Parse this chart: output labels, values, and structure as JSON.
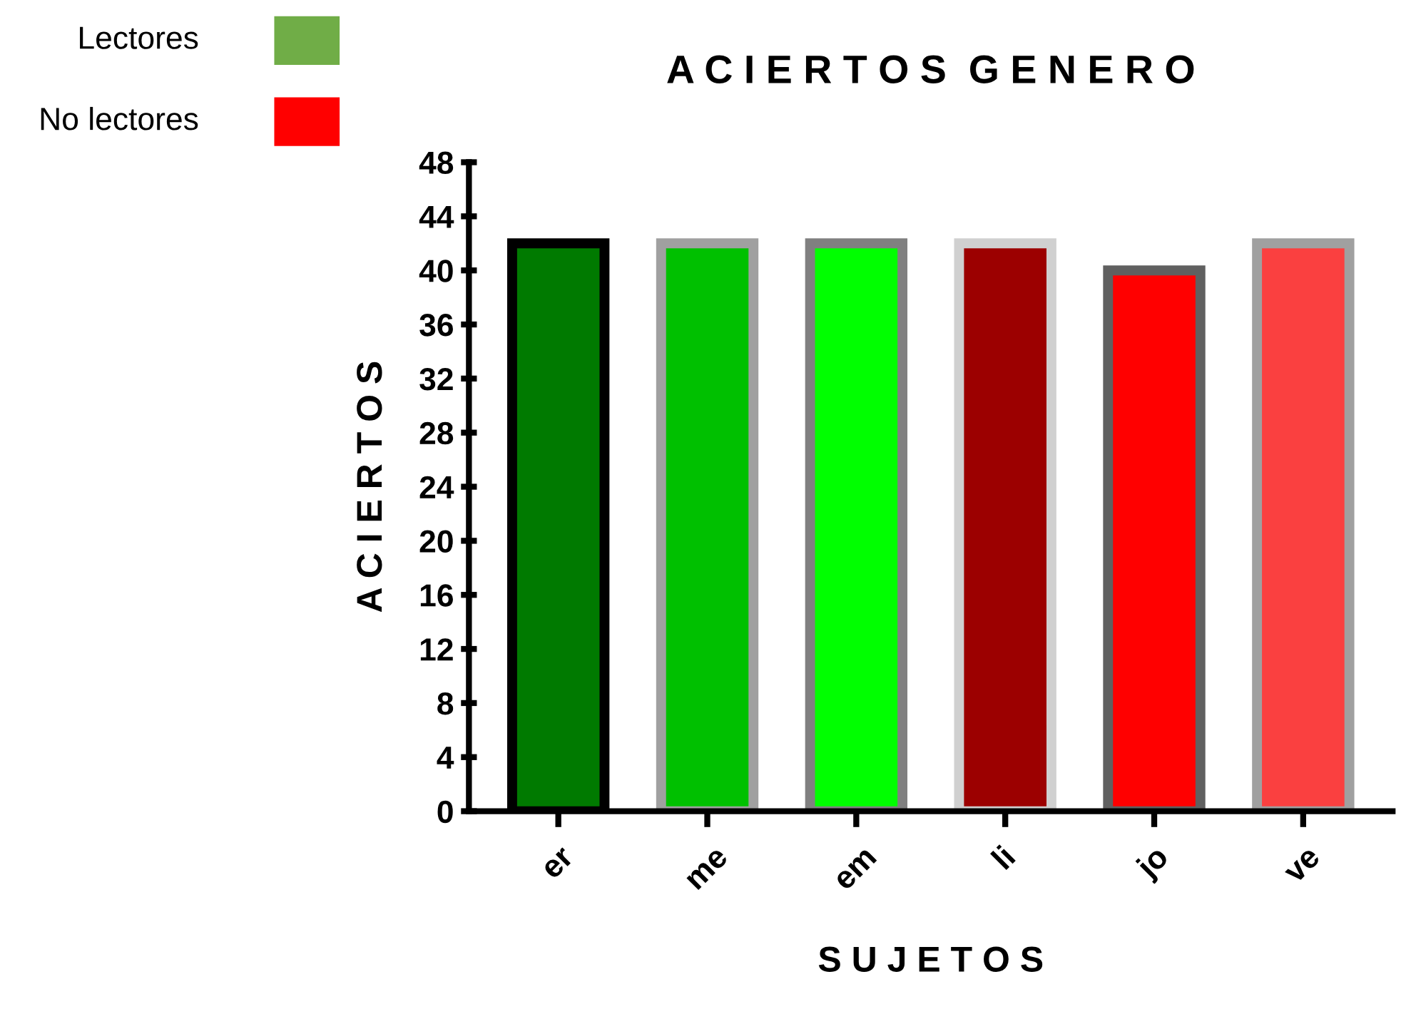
{
  "chart_data": {
    "type": "bar",
    "title": "A C I E R T O S  G E N E R O",
    "xlabel": "S U J E T O S",
    "ylabel": "A C I E R T O S",
    "categories": [
      "er",
      "me",
      "em",
      "li",
      "jo",
      "ve"
    ],
    "values": [
      42,
      42,
      42,
      42,
      40,
      42
    ],
    "colors": [
      "#007a00",
      "#00c000",
      "#00ff00",
      "#9c0000",
      "#ff0000",
      "#fa4040"
    ],
    "annotations": [
      "Lectores",
      "No lectores"
    ],
    "ylim": [
      0,
      48
    ],
    "yticks": [
      0,
      4,
      8,
      12,
      16,
      20,
      24,
      28,
      32,
      36,
      40,
      44,
      48
    ],
    "grid": false
  }
}
